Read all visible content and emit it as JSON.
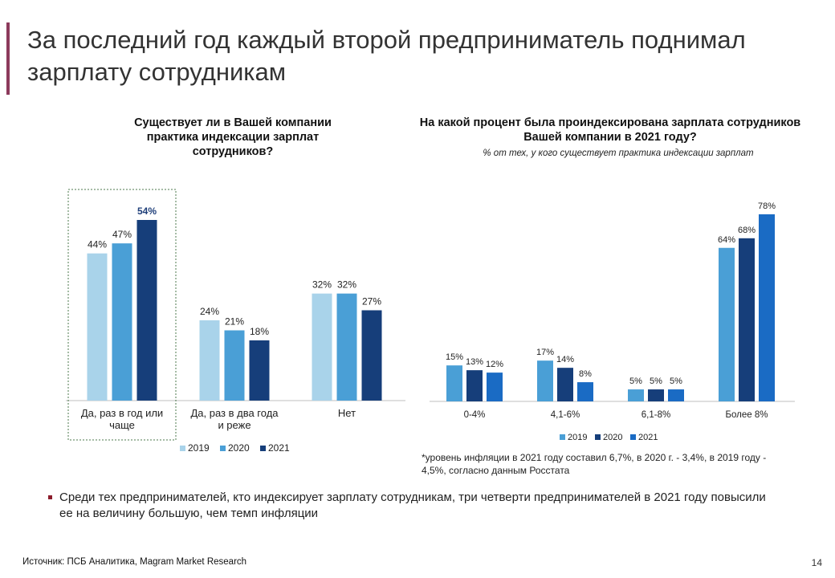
{
  "slide": {
    "title": "За последний год каждый второй предприниматель поднимал зарплату сотрудникам",
    "footnote": "*уровень инфляции в 2021 году составил 6,7%, в 2020 г. - 3,4%, в 2019 году - 4,5%, согласно данным Росстата",
    "bullet": "Среди тех предпринимателей, кто индексирует зарплату сотрудникам, три четверти предпринимателей в 2021 году повысили ее на величину большую, чем темп инфляции",
    "source": "Источник: ПСБ Аналитика, Magram Market Research",
    "page_number": "14",
    "accent_color": "#8c3a5c"
  },
  "chart_data": [
    {
      "type": "bar",
      "title": "Существует ли в Вашей компании практика индексации зарплат сотрудников?",
      "categories": [
        "Да, раз в год или чаще",
        "Да, раз в два года и реже",
        "Нет"
      ],
      "series": [
        {
          "name": "2019",
          "values": [
            44,
            24,
            32
          ],
          "labels": [
            "44%",
            "24%",
            "32%"
          ],
          "color": "#a9d3ea"
        },
        {
          "name": "2020",
          "values": [
            47,
            21,
            32
          ],
          "labels": [
            "47%",
            "21%",
            "32%"
          ],
          "color": "#4a9fd6"
        },
        {
          "name": "2021",
          "values": [
            54,
            18,
            27
          ],
          "labels": [
            "54%",
            "18%",
            "27%"
          ],
          "color": "#163e7a"
        }
      ],
      "highlight_category": "Да, раз в год или чаще",
      "legend_position": "bottom",
      "ylim": [
        0,
        60
      ]
    },
    {
      "type": "bar",
      "title": "На какой процент была проиндексирована зарплата сотрудников Вашей компании в 2021 году?",
      "subtitle": "% от тех, у кого существует практика индексации зарплат",
      "categories": [
        "0-4%",
        "4,1-6%",
        "6,1-8%",
        "Более 8%"
      ],
      "series": [
        {
          "name": "2019",
          "values": [
            15,
            17,
            5,
            64
          ],
          "labels": [
            "15%",
            "17%",
            "5%",
            "64%"
          ],
          "color": "#4a9fd6"
        },
        {
          "name": "2020",
          "values": [
            13,
            14,
            5,
            68
          ],
          "labels": [
            "13%",
            "14%",
            "5%",
            "68%"
          ],
          "color": "#163e7a"
        },
        {
          "name": "2021",
          "values": [
            12,
            8,
            5,
            78
          ],
          "labels": [
            "12%",
            "8%",
            "5%",
            "78%"
          ],
          "color": "#1a6bc4"
        }
      ],
      "legend_position": "bottom",
      "ylim": [
        0,
        85
      ]
    }
  ]
}
